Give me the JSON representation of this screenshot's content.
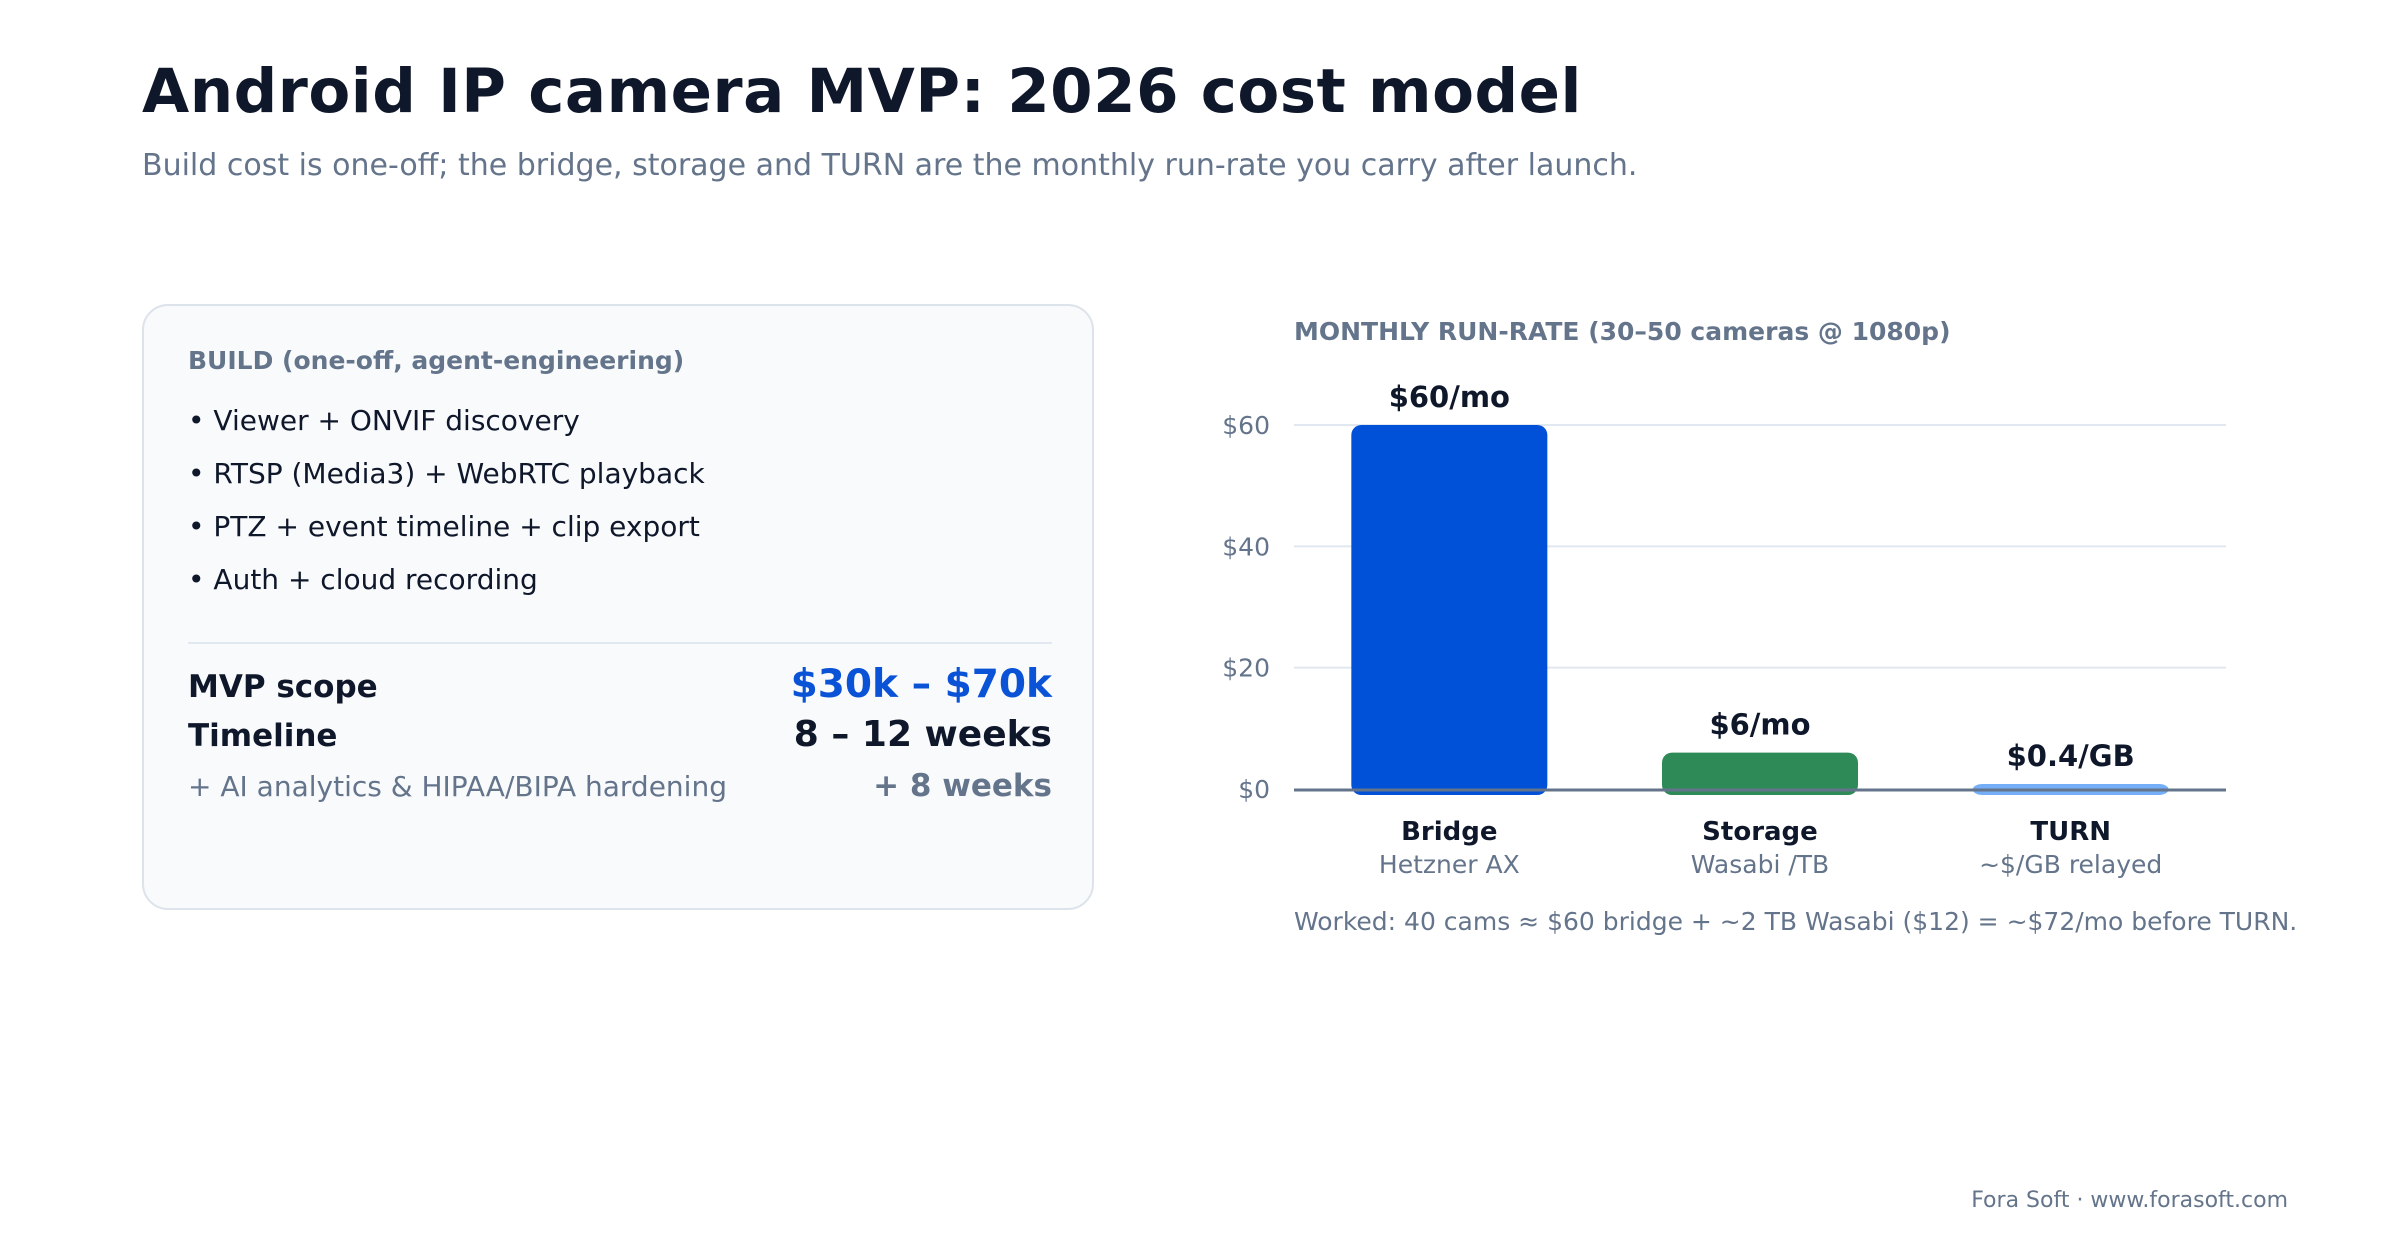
{
  "header": {
    "title": "Android IP camera MVP: 2026 cost model",
    "subtitle": "Build cost is one-off; the bridge, storage and TURN are the monthly run-rate you carry after launch."
  },
  "build_card": {
    "heading": "BUILD (one-off, agent-engineering)",
    "items": [
      "• Viewer + ONVIF discovery",
      "• RTSP (Media3) + WebRTC playback",
      "• PTZ + event timeline + clip export",
      "• Auth + cloud recording"
    ],
    "mvp_scope": {
      "label": "MVP scope",
      "value": "$30k – $70k"
    },
    "timeline": {
      "label": "Timeline",
      "value": "8 – 12 weeks"
    },
    "addon": {
      "label": "+ AI analytics & HIPAA/BIPA hardening",
      "value": "+ 8 weeks"
    }
  },
  "chart_data": {
    "type": "bar",
    "title": "MONTHLY RUN-RATE (30–50 cameras @ 1080p)",
    "categories": [
      "Bridge",
      "Storage",
      "TURN"
    ],
    "category_subtitles": [
      "Hetzner AX",
      "Wasabi /TB",
      "~$/GB relayed"
    ],
    "values": [
      60,
      6,
      0.4
    ],
    "data_labels": [
      "$60/mo",
      "$6/mo",
      "$0.4/GB"
    ],
    "colors": [
      "#0050d8",
      "#2e8b57",
      "#74aef6"
    ],
    "yticks": [
      0,
      20,
      40,
      60
    ],
    "ytick_labels": [
      "$0",
      "$20",
      "$40",
      "$60"
    ],
    "ylim": [
      0,
      60
    ],
    "grid": true,
    "note": "Worked: 40 cams ≈ $60 bridge + ~2 TB Wasabi ($12) = ~$72/mo before TURN."
  },
  "footer": {
    "text": "Fora Soft · www.forasoft.com"
  }
}
